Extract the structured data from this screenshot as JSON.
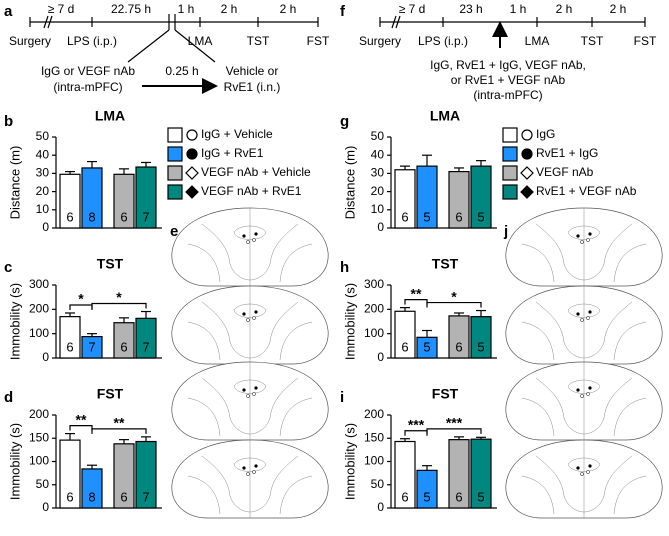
{
  "panel_labels": [
    "a",
    "b",
    "c",
    "d",
    "e",
    "f",
    "g",
    "h",
    "i",
    "j"
  ],
  "timeline_a": {
    "intervals": [
      "≥ 7 d",
      "22.75 h",
      "1 h",
      "2 h",
      "2 h"
    ],
    "events": [
      "Surgery",
      "LPS (i.p.)",
      "LMA",
      "TST",
      "FST"
    ],
    "treatment_1": [
      "IgG or VEGF nAb",
      "(intra-mPFC)"
    ],
    "delay": "0.25 h",
    "treatment_2": [
      "Vehicle or",
      "RvE1 (i.n.)"
    ]
  },
  "timeline_f": {
    "intervals": [
      "≥ 7 d",
      "23 h",
      "1 h",
      "2 h",
      "2 h"
    ],
    "events": [
      "Surgery",
      "LPS (i.p.)",
      "LMA",
      "TST",
      "FST"
    ],
    "treatment": [
      "IgG, RvE1 + IgG, VEGF nAb,",
      "or RvE1 + VEGF nAb",
      "(intra-mPFC)"
    ]
  },
  "legend_b": [
    "IgG + Vehicle",
    "IgG + RvE1",
    "VEGF nAb + Vehicle",
    "VEGF nAb + RvE1"
  ],
  "legend_g": [
    "IgG",
    "RvE1 + IgG",
    "VEGF nAb",
    "RvE1 + VEGF nAb"
  ],
  "chart_data": [
    {
      "type": "bar",
      "title": "LMA",
      "ylabel": "Distance (m)",
      "values": [
        29.5,
        33,
        29.5,
        33.5
      ],
      "errors": [
        1.5,
        3.5,
        3,
        2.5
      ],
      "n": [
        6,
        8,
        6,
        7
      ],
      "colors": [
        "#ffffff",
        "#1e90ff",
        "#b3b3b3",
        "#00877f"
      ],
      "ylim": [
        0,
        50
      ],
      "yticks": [
        0,
        10,
        20,
        30,
        40,
        50
      ],
      "significance": []
    },
    {
      "type": "bar",
      "title": "TST",
      "ylabel": "Immobility (s)",
      "values": [
        170,
        88,
        145,
        163
      ],
      "errors": [
        15,
        12,
        20,
        28
      ],
      "n": [
        6,
        7,
        6,
        7
      ],
      "colors": [
        "#ffffff",
        "#1e90ff",
        "#b3b3b3",
        "#00877f"
      ],
      "ylim": [
        0,
        300
      ],
      "yticks": [
        0,
        100,
        200,
        300
      ],
      "significance": [
        {
          "bars": [
            0,
            1
          ],
          "label": "*"
        },
        {
          "bars": [
            1,
            3
          ],
          "label": "*"
        }
      ]
    },
    {
      "type": "bar",
      "title": "FST",
      "ylabel": "Immobility (s)",
      "values": [
        146,
        84,
        138,
        143
      ],
      "errors": [
        14,
        8,
        9,
        10
      ],
      "n": [
        6,
        8,
        6,
        7
      ],
      "colors": [
        "#ffffff",
        "#1e90ff",
        "#b3b3b3",
        "#00877f"
      ],
      "ylim": [
        0,
        200
      ],
      "yticks": [
        0,
        50,
        100,
        150,
        200
      ],
      "significance": [
        {
          "bars": [
            0,
            1
          ],
          "label": "**"
        },
        {
          "bars": [
            1,
            3
          ],
          "label": "**"
        }
      ]
    },
    {
      "type": "bar",
      "title": "LMA",
      "ylabel": "Distance (m)",
      "values": [
        32,
        34,
        31,
        34
      ],
      "errors": [
        2,
        6,
        2,
        3
      ],
      "n": [
        6,
        5,
        6,
        5
      ],
      "colors": [
        "#ffffff",
        "#1e90ff",
        "#b3b3b3",
        "#00877f"
      ],
      "ylim": [
        0,
        50
      ],
      "yticks": [
        0,
        10,
        20,
        30,
        40,
        50
      ],
      "significance": []
    },
    {
      "type": "bar",
      "title": "TST",
      "ylabel": "Immobility (s)",
      "values": [
        192,
        85,
        173,
        170
      ],
      "errors": [
        15,
        28,
        12,
        25
      ],
      "n": [
        6,
        5,
        6,
        5
      ],
      "colors": [
        "#ffffff",
        "#1e90ff",
        "#b3b3b3",
        "#00877f"
      ],
      "ylim": [
        0,
        300
      ],
      "yticks": [
        0,
        100,
        200,
        300
      ],
      "significance": [
        {
          "bars": [
            0,
            1
          ],
          "label": "**"
        },
        {
          "bars": [
            1,
            3
          ],
          "label": "*"
        }
      ]
    },
    {
      "type": "bar",
      "title": "FST",
      "ylabel": "Immobility (s)",
      "values": [
        143,
        81,
        147,
        148
      ],
      "errors": [
        6,
        10,
        6,
        4
      ],
      "n": [
        6,
        5,
        6,
        5
      ],
      "colors": [
        "#ffffff",
        "#1e90ff",
        "#b3b3b3",
        "#00877f"
      ],
      "ylim": [
        0,
        200
      ],
      "yticks": [
        0,
        50,
        100,
        150,
        200
      ],
      "significance": [
        {
          "bars": [
            0,
            1
          ],
          "label": "***"
        },
        {
          "bars": [
            1,
            3
          ],
          "label": "***"
        }
      ]
    }
  ]
}
